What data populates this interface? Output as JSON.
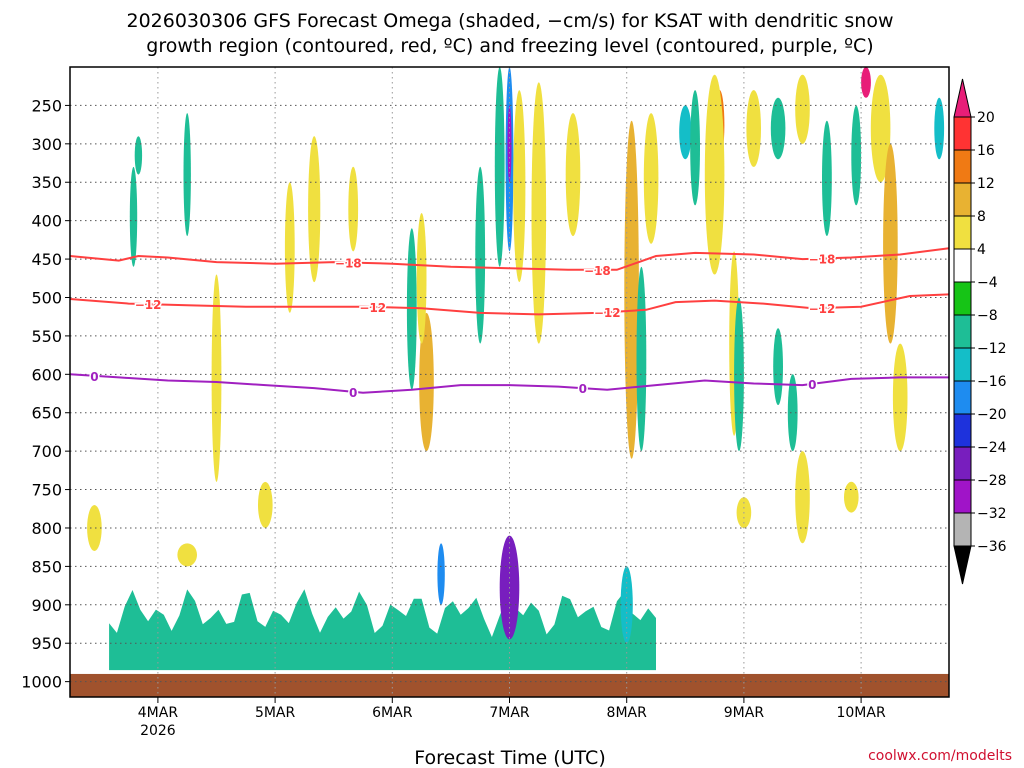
{
  "title": {
    "line1": "2026030306 GFS Forecast Omega (shaded, −cm/s) for KSAT with dendritic snow",
    "line2": "growth region (contoured, red, ºC) and freezing level (contoured, purple, ºC)"
  },
  "xlabel": "Forecast Time (UTC)",
  "watermark": "coolwx.com/modelts",
  "colors": {
    "ground": "#a0522d",
    "grid": "#555555",
    "dgz": "#ff4040",
    "freezing": "#a020c0"
  },
  "chart_data": {
    "type": "heatmap",
    "x_unit": "forecast hour from 2026030306",
    "x_range": [
      0,
      180
    ],
    "y_unit": "pressure (hPa)",
    "y_range": [
      1020,
      200
    ],
    "yticks": [
      250,
      300,
      350,
      400,
      450,
      500,
      550,
      600,
      650,
      700,
      750,
      800,
      850,
      900,
      950,
      1000
    ],
    "ytick_labels": [
      "250",
      "300",
      "350",
      "400",
      "450",
      "500",
      "550",
      "600",
      "650",
      "700",
      "750",
      "800",
      "850",
      "900",
      "950",
      "1000"
    ],
    "xticks": [
      18,
      42,
      66,
      90,
      114,
      138,
      162
    ],
    "xtick_labels": [
      "4MAR",
      "5MAR",
      "6MAR",
      "7MAR",
      "8MAR",
      "9MAR",
      "10MAR"
    ],
    "xtick_sublabel": "2026",
    "surface_pressure": 990,
    "colorbar": {
      "labels": [
        "20",
        "16",
        "12",
        "8",
        "4",
        "−4",
        "−8",
        "−12",
        "−16",
        "−20",
        "−24",
        "−28",
        "−32",
        "−36"
      ],
      "colors": [
        "#e81e78",
        "#ff3333",
        "#f07a14",
        "#e8b232",
        "#f0e040",
        "#ffffff",
        "#16c416",
        "#1ebe96",
        "#14bec8",
        "#1e8cf0",
        "#1e32dc",
        "#781ebe",
        "#a014c8",
        "#b4b4b4",
        "#000000"
      ]
    },
    "contours": [
      {
        "name": "dgz_-18C",
        "label": "−18",
        "color": "#ff4040",
        "points": [
          [
            0,
            446
          ],
          [
            10,
            452
          ],
          [
            14,
            446
          ],
          [
            20,
            448
          ],
          [
            30,
            454
          ],
          [
            42,
            456
          ],
          [
            54,
            454
          ],
          [
            66,
            456
          ],
          [
            78,
            460
          ],
          [
            90,
            462
          ],
          [
            102,
            464
          ],
          [
            112,
            464
          ],
          [
            120,
            446
          ],
          [
            128,
            442
          ],
          [
            140,
            444
          ],
          [
            150,
            450
          ],
          [
            160,
            448
          ],
          [
            170,
            444
          ],
          [
            180,
            436
          ]
        ],
        "label_x": [
          57,
          108,
          154
        ]
      },
      {
        "name": "dgz_-12C",
        "label": "−12",
        "color": "#ff4040",
        "points": [
          [
            0,
            502
          ],
          [
            12,
            508
          ],
          [
            24,
            510
          ],
          [
            36,
            512
          ],
          [
            48,
            512
          ],
          [
            60,
            512
          ],
          [
            72,
            514
          ],
          [
            84,
            520
          ],
          [
            96,
            522
          ],
          [
            108,
            520
          ],
          [
            118,
            516
          ],
          [
            124,
            506
          ],
          [
            132,
            504
          ],
          [
            142,
            508
          ],
          [
            152,
            514
          ],
          [
            162,
            512
          ],
          [
            172,
            498
          ],
          [
            180,
            496
          ]
        ],
        "label_x": [
          16,
          62,
          110,
          154
        ]
      },
      {
        "name": "freezing_0C",
        "label": "0",
        "color": "#a020c0",
        "points": [
          [
            0,
            600
          ],
          [
            10,
            604
          ],
          [
            20,
            608
          ],
          [
            30,
            610
          ],
          [
            40,
            614
          ],
          [
            50,
            618
          ],
          [
            60,
            624
          ],
          [
            70,
            620
          ],
          [
            80,
            614
          ],
          [
            90,
            614
          ],
          [
            100,
            616
          ],
          [
            110,
            620
          ],
          [
            120,
            614
          ],
          [
            130,
            608
          ],
          [
            140,
            612
          ],
          [
            150,
            614
          ],
          [
            160,
            606
          ],
          [
            170,
            604
          ],
          [
            180,
            604
          ]
        ],
        "label_x": [
          5,
          58,
          105,
          152
        ]
      }
    ],
    "omega_regions": [
      {
        "hour": 90,
        "pmin": 810,
        "pmax": 945,
        "width_h": 4,
        "omega": -24
      },
      {
        "hour": 90,
        "pmin": 200,
        "pmax": 440,
        "width_h": 1.6,
        "omega": -16
      },
      {
        "hour": 90,
        "pmin": 250,
        "pmax": 350,
        "width_h": 0.8,
        "omega": -28
      },
      {
        "hour": 92,
        "pmin": 230,
        "pmax": 480,
        "width_h": 2.5,
        "omega": 4
      },
      {
        "hour": 96,
        "pmin": 220,
        "pmax": 560,
        "width_h": 3,
        "omega": 4
      },
      {
        "hour": 103,
        "pmin": 260,
        "pmax": 420,
        "width_h": 3,
        "omega": 4
      },
      {
        "hour": 115,
        "pmin": 270,
        "pmax": 710,
        "width_h": 3,
        "omega": 8
      },
      {
        "hour": 119,
        "pmin": 260,
        "pmax": 430,
        "width_h": 3,
        "omega": 4
      },
      {
        "hour": 73,
        "pmin": 520,
        "pmax": 700,
        "width_h": 3,
        "omega": 8
      },
      {
        "hour": 72,
        "pmin": 390,
        "pmax": 560,
        "width_h": 2,
        "omega": 4
      },
      {
        "hour": 50,
        "pmin": 290,
        "pmax": 480,
        "width_h": 2.5,
        "omega": 4
      },
      {
        "hour": 45,
        "pmin": 350,
        "pmax": 520,
        "width_h": 2,
        "omega": 4
      },
      {
        "hour": 58,
        "pmin": 330,
        "pmax": 440,
        "width_h": 2,
        "omega": 4
      },
      {
        "hour": 30,
        "pmin": 470,
        "pmax": 740,
        "width_h": 2,
        "omega": 4
      },
      {
        "hour": 5,
        "pmin": 770,
        "pmax": 830,
        "width_h": 3,
        "omega": 4
      },
      {
        "hour": 24,
        "pmin": 820,
        "pmax": 850,
        "width_h": 4,
        "omega": 4
      },
      {
        "hour": 40,
        "pmin": 740,
        "pmax": 800,
        "width_h": 3,
        "omega": 4
      },
      {
        "hour": 133,
        "pmin": 230,
        "pmax": 320,
        "width_h": 2,
        "omega": 12
      },
      {
        "hour": 132,
        "pmin": 210,
        "pmax": 470,
        "width_h": 4,
        "omega": 4
      },
      {
        "hour": 140,
        "pmin": 230,
        "pmax": 330,
        "width_h": 3,
        "omega": 4
      },
      {
        "hour": 150,
        "pmin": 210,
        "pmax": 300,
        "width_h": 3,
        "omega": 4
      },
      {
        "hour": 163,
        "pmin": 200,
        "pmax": 240,
        "width_h": 2,
        "omega": 20
      },
      {
        "hour": 166,
        "pmin": 210,
        "pmax": 350,
        "width_h": 4,
        "omega": 4
      },
      {
        "hour": 168,
        "pmin": 300,
        "pmax": 560,
        "width_h": 3,
        "omega": 8
      },
      {
        "hour": 170,
        "pmin": 560,
        "pmax": 700,
        "width_h": 3,
        "omega": 4
      },
      {
        "hour": 150,
        "pmin": 700,
        "pmax": 820,
        "width_h": 3,
        "omega": 4
      },
      {
        "hour": 160,
        "pmin": 740,
        "pmax": 780,
        "width_h": 3,
        "omega": 4
      },
      {
        "hour": 138,
        "pmin": 760,
        "pmax": 800,
        "width_h": 3,
        "omega": 4
      },
      {
        "hour": 136,
        "pmin": 440,
        "pmax": 680,
        "width_h": 2,
        "omega": 4
      },
      {
        "hour": 126,
        "pmin": 250,
        "pmax": 320,
        "width_h": 2.5,
        "omega": -12
      },
      {
        "hour": 128,
        "pmin": 230,
        "pmax": 380,
        "width_h": 2,
        "omega": -8
      },
      {
        "hour": 145,
        "pmin": 240,
        "pmax": 320,
        "width_h": 3,
        "omega": -8
      },
      {
        "hour": 155,
        "pmin": 270,
        "pmax": 420,
        "width_h": 2,
        "omega": -8
      },
      {
        "hour": 178,
        "pmin": 240,
        "pmax": 320,
        "width_h": 2,
        "omega": -12
      },
      {
        "hour": 137,
        "pmin": 500,
        "pmax": 700,
        "width_h": 2,
        "omega": -8
      },
      {
        "hour": 145,
        "pmin": 540,
        "pmax": 640,
        "width_h": 2,
        "omega": -8
      },
      {
        "hour": 88,
        "pmin": 200,
        "pmax": 460,
        "width_h": 2,
        "omega": -8
      },
      {
        "hour": 84,
        "pmin": 330,
        "pmax": 560,
        "width_h": 2,
        "omega": -8
      },
      {
        "hour": 70,
        "pmin": 410,
        "pmax": 620,
        "width_h": 2,
        "omega": -8
      },
      {
        "hour": 24,
        "pmin": 260,
        "pmax": 420,
        "width_h": 1.5,
        "omega": -8
      },
      {
        "hour": 13,
        "pmin": 330,
        "pmax": 460,
        "width_h": 1.5,
        "omega": -8
      },
      {
        "hour": 14,
        "pmin": 290,
        "pmax": 340,
        "width_h": 1.5,
        "omega": -8
      },
      {
        "hour": 117,
        "pmin": 460,
        "pmax": 700,
        "width_h": 2,
        "omega": -8
      },
      {
        "hour": 114,
        "pmin": 850,
        "pmax": 950,
        "width_h": 2.5,
        "omega": -12
      },
      {
        "hour": 76,
        "pmin": 820,
        "pmax": 900,
        "width_h": 1.5,
        "omega": -16
      },
      {
        "hour": 148,
        "pmin": 600,
        "pmax": 700,
        "width_h": 2,
        "omega": -8
      },
      {
        "hour": 161,
        "pmin": 250,
        "pmax": 380,
        "width_h": 2,
        "omega": -8
      }
    ],
    "low_level_band": {
      "pmin": 880,
      "pmax": 985,
      "hour_start": 8,
      "hour_end": 120,
      "omega": -8
    }
  }
}
